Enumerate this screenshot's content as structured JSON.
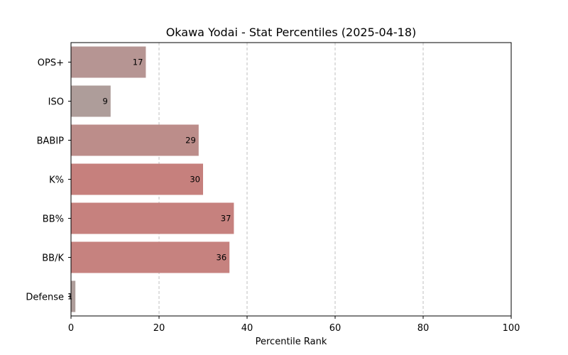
{
  "chart_data": {
    "type": "bar",
    "orientation": "horizontal",
    "title": "Okawa Yodai - Stat Percentiles (2025-04-18)",
    "xlabel": "Percentile Rank",
    "ylabel": "",
    "xlim": [
      0,
      100
    ],
    "x_ticks": [
      "0",
      "20",
      "40",
      "60",
      "80",
      "100"
    ],
    "grid": "vertical dashed",
    "categories": [
      "OPS+",
      "ISO",
      "BABIP",
      "K%",
      "BB%",
      "BB/K",
      "Defense"
    ],
    "values": [
      17,
      9,
      29,
      30,
      37,
      36,
      1
    ],
    "value_labels": [
      "17",
      "9",
      "29",
      "30",
      "37",
      "36",
      "1"
    ],
    "bar_colors": [
      "#b69593",
      "#ae9d9a",
      "#bc8d8a",
      "#c6807d",
      "#c6817e",
      "#c6827f",
      "#ae9d9a"
    ]
  }
}
